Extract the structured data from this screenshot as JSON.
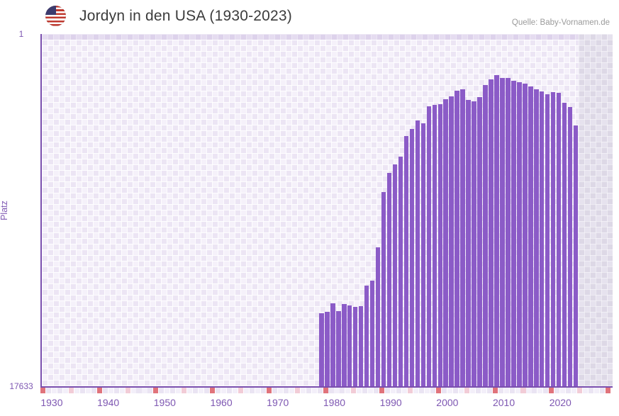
{
  "header": {
    "title": "Jordyn in den USA (1930-2023)",
    "source": "Quelle: Baby-Vornamen.de"
  },
  "chart_data": {
    "type": "bar",
    "title": "Jordyn in den USA (1930-2023)",
    "ylabel": "Platz",
    "y_axis_top_label": "1",
    "y_axis_bottom_label": "17633",
    "ylim": [
      1,
      17633
    ],
    "y_inverted": true,
    "grid": true,
    "legend_position": "none",
    "x_cell_range": [
      1930,
      2030
    ],
    "x_tick_labels": [
      "1930",
      "1940",
      "1950",
      "1960",
      "1970",
      "1980",
      "1990",
      "2000",
      "2010",
      "2020"
    ],
    "x_tick_years": [
      1930,
      1940,
      1950,
      1960,
      1970,
      1980,
      1990,
      2000,
      2010,
      2020
    ],
    "years": [
      1978,
      1979,
      1980,
      1981,
      1982,
      1983,
      1984,
      1985,
      1986,
      1987,
      1988,
      1989,
      1990,
      1991,
      1992,
      1993,
      1994,
      1995,
      1996,
      1997,
      1998,
      1999,
      2000,
      2001,
      2002,
      2003,
      2004,
      2005,
      2006,
      2007,
      2008,
      2009,
      2010,
      2011,
      2012,
      2013,
      2014,
      2015,
      2016,
      2017,
      2018,
      2019,
      2020,
      2021,
      2022,
      2023
    ],
    "ranks": [
      13980,
      13910,
      13480,
      13870,
      13520,
      13590,
      13660,
      13620,
      12600,
      12350,
      10680,
      7910,
      6950,
      6530,
      6140,
      5110,
      4750,
      4330,
      4470,
      3620,
      3550,
      3510,
      3260,
      3120,
      2840,
      2770,
      3300,
      3370,
      3160,
      2560,
      2270,
      2060,
      2200,
      2200,
      2340,
      2410,
      2480,
      2630,
      2770,
      2870,
      3020,
      2910,
      2950,
      3440,
      3660,
      4580
    ],
    "colors": {
      "bar": "#8b5bc7",
      "axis": "#7a4fae",
      "tick_label": "#7e57b2",
      "decade_strip_cell": "#e0737b",
      "half_decade_strip_cell": "#f2ccd7",
      "strip_cell_even": "#f3eff9",
      "strip_cell_odd": "#eae4f3",
      "future_band": "#ddd8e6"
    }
  }
}
